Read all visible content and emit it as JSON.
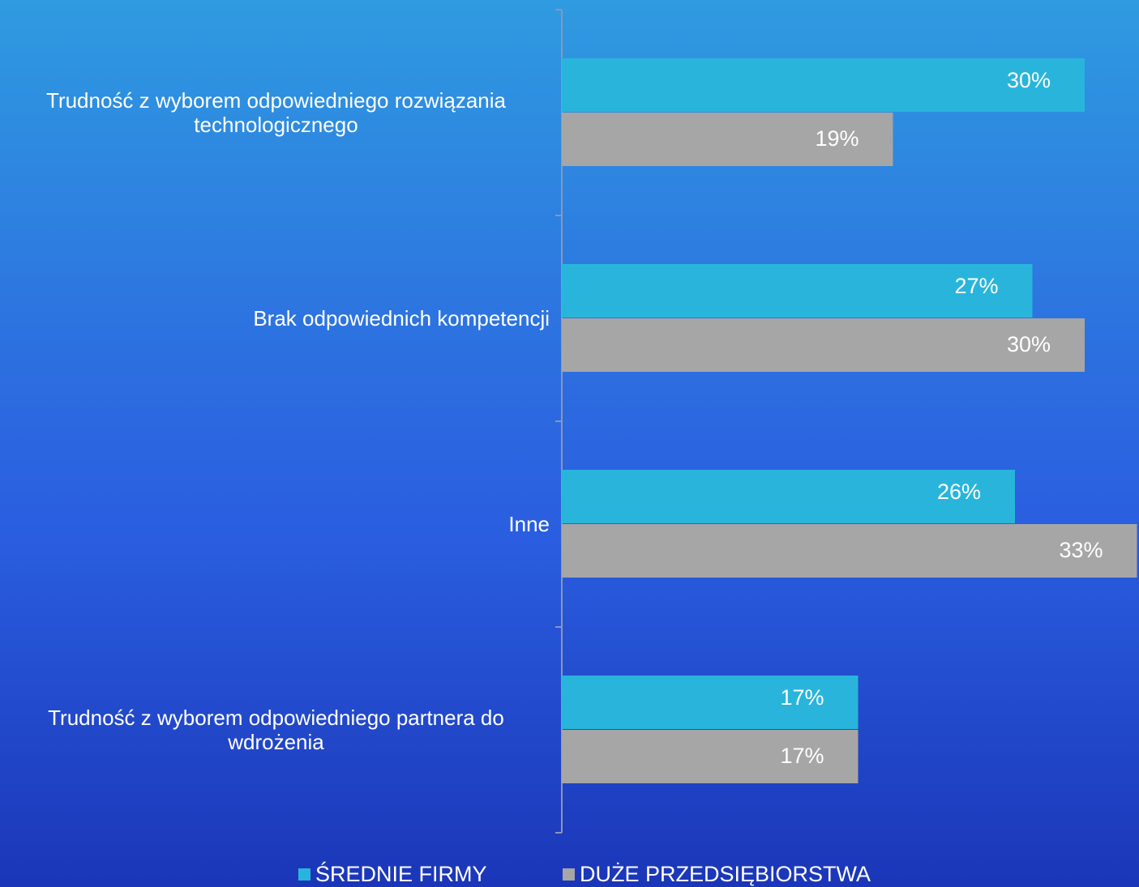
{
  "chart_data": {
    "type": "bar",
    "orientation": "horizontal",
    "categories": [
      "Trudność z wyborem odpowiedniego rozwiązania technologicznego",
      "Brak odpowiednich kompetencji",
      "Inne",
      "Trudność z wyborem odpowiedniego partnera do wdrożenia"
    ],
    "series": [
      {
        "name": "ŚREDNIE FIRMY",
        "color": "#29b5db",
        "values": [
          30,
          27,
          26,
          17
        ],
        "value_labels": [
          "30%",
          "27%",
          "26%",
          "17%"
        ]
      },
      {
        "name": "DUŻE PRZEDSIĘBIORSTWA",
        "color": "#a6a6a6",
        "values": [
          19,
          30,
          33,
          17
        ],
        "value_labels": [
          "19%",
          "30%",
          "33%",
          "17%"
        ]
      }
    ],
    "legend": "bottom"
  }
}
